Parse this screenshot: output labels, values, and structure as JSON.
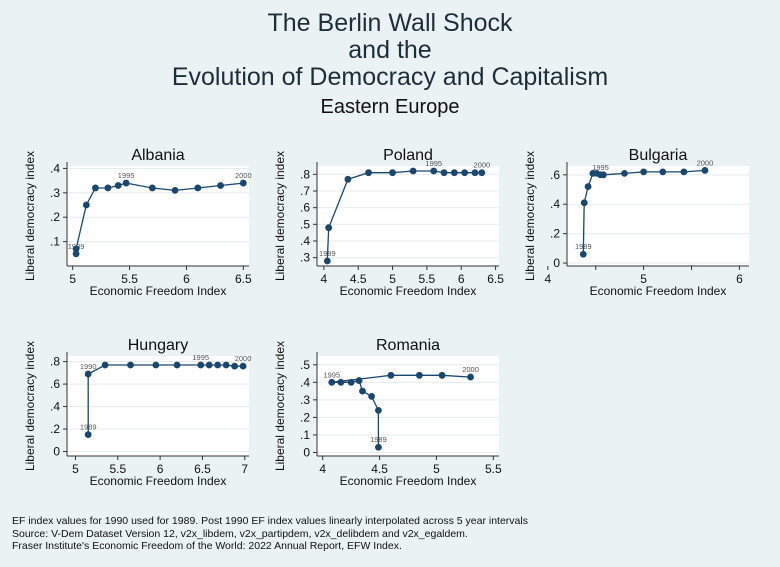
{
  "title_lines": [
    "The Berlin Wall Shock",
    "and the",
    "Evolution of Democracy and Capitalism"
  ],
  "subtitle": "Eastern Europe",
  "chart_data": [
    {
      "type": "line",
      "title": "Albania",
      "xlabel": "Economic Freedom Index",
      "ylabel": "Liberal democracy index",
      "xlim": [
        4.95,
        6.55
      ],
      "ylim": [
        0.0,
        0.41
      ],
      "xticks": [
        "5",
        "5.5",
        "6",
        "6.5"
      ],
      "xtick_values": [
        5,
        5.5,
        6,
        6.5
      ],
      "yticks": [
        ".1",
        ".2",
        ".3",
        ".4"
      ],
      "ytick_values": [
        0.1,
        0.2,
        0.3,
        0.4
      ],
      "points": [
        {
          "x": 5.03,
          "y": 0.05,
          "label": "1989"
        },
        {
          "x": 5.03,
          "y": 0.07
        },
        {
          "x": 5.12,
          "y": 0.25
        },
        {
          "x": 5.2,
          "y": 0.32
        },
        {
          "x": 5.31,
          "y": 0.32
        },
        {
          "x": 5.4,
          "y": 0.33
        },
        {
          "x": 5.47,
          "y": 0.34,
          "label": "1995"
        },
        {
          "x": 5.7,
          "y": 0.32
        },
        {
          "x": 5.9,
          "y": 0.31
        },
        {
          "x": 6.1,
          "y": 0.32
        },
        {
          "x": 6.3,
          "y": 0.33
        },
        {
          "x": 6.5,
          "y": 0.34,
          "label": "2000"
        }
      ]
    },
    {
      "type": "line",
      "title": "Poland",
      "xlabel": "Economic Freedom Index",
      "ylabel": "Liberal democracy index",
      "xlim": [
        3.9,
        6.55
      ],
      "ylim": [
        0.25,
        0.85
      ],
      "xticks": [
        "4",
        "4.5",
        "5",
        "5.5",
        "6",
        "6.5"
      ],
      "xtick_values": [
        4,
        4.5,
        5,
        5.5,
        6,
        6.5
      ],
      "yticks": [
        ".3",
        ".4",
        ".5",
        ".6",
        ".7",
        ".8"
      ],
      "ytick_values": [
        0.3,
        0.4,
        0.5,
        0.6,
        0.7,
        0.8
      ],
      "points": [
        {
          "x": 4.05,
          "y": 0.28,
          "label": "1989"
        },
        {
          "x": 4.07,
          "y": 0.48
        },
        {
          "x": 4.35,
          "y": 0.77
        },
        {
          "x": 4.65,
          "y": 0.81
        },
        {
          "x": 5.0,
          "y": 0.81
        },
        {
          "x": 5.3,
          "y": 0.82
        },
        {
          "x": 5.6,
          "y": 0.82,
          "label": "1995"
        },
        {
          "x": 5.75,
          "y": 0.81
        },
        {
          "x": 5.9,
          "y": 0.81
        },
        {
          "x": 6.05,
          "y": 0.81
        },
        {
          "x": 6.2,
          "y": 0.81
        },
        {
          "x": 6.3,
          "y": 0.81,
          "label": "2000"
        }
      ]
    },
    {
      "type": "line",
      "title": "Bulgaria",
      "xlabel": "Economic Freedom Index",
      "ylabel": "Liberal democracy index",
      "xlim": [
        4.2,
        6.1
      ],
      "ylim": [
        -0.02,
        0.66
      ],
      "xticks": [
        "4",
        "5",
        "6"
      ],
      "xtick_values": [
        4,
        5,
        6
      ],
      "yticks": [
        "0",
        ".2",
        ".4",
        ".6"
      ],
      "ytick_values": [
        0,
        0.2,
        0.4,
        0.6
      ],
      "minor_ticks": [
        4.5,
        5.5
      ],
      "points": [
        {
          "x": 4.37,
          "y": 0.06,
          "label": "1989"
        },
        {
          "x": 4.38,
          "y": 0.41
        },
        {
          "x": 4.42,
          "y": 0.52
        },
        {
          "x": 4.47,
          "y": 0.61
        },
        {
          "x": 4.51,
          "y": 0.61
        },
        {
          "x": 4.55,
          "y": 0.6,
          "label": "1995"
        },
        {
          "x": 4.58,
          "y": 0.6
        },
        {
          "x": 4.8,
          "y": 0.61
        },
        {
          "x": 5.0,
          "y": 0.62
        },
        {
          "x": 5.2,
          "y": 0.62
        },
        {
          "x": 5.42,
          "y": 0.62
        },
        {
          "x": 5.64,
          "y": 0.63,
          "label": "2000"
        }
      ]
    },
    {
      "type": "line",
      "title": "Hungary",
      "xlabel": "Economic Freedom Index",
      "ylabel": "Liberal democracy index",
      "xlim": [
        4.9,
        7.05
      ],
      "ylim": [
        -0.04,
        0.85
      ],
      "xticks": [
        "5",
        "5.5",
        "6",
        "6.5",
        "7"
      ],
      "xtick_values": [
        5,
        5.5,
        6,
        6.5,
        7
      ],
      "yticks": [
        "0",
        ".2",
        ".4",
        ".6",
        ".8"
      ],
      "ytick_values": [
        0,
        0.2,
        0.4,
        0.6,
        0.8
      ],
      "points": [
        {
          "x": 5.15,
          "y": 0.15,
          "label": "1989"
        },
        {
          "x": 5.15,
          "y": 0.69,
          "label": "1990"
        },
        {
          "x": 5.35,
          "y": 0.77
        },
        {
          "x": 5.65,
          "y": 0.77
        },
        {
          "x": 5.95,
          "y": 0.77
        },
        {
          "x": 6.2,
          "y": 0.77
        },
        {
          "x": 6.48,
          "y": 0.77,
          "label": "1995"
        },
        {
          "x": 6.58,
          "y": 0.77
        },
        {
          "x": 6.68,
          "y": 0.77
        },
        {
          "x": 6.78,
          "y": 0.77
        },
        {
          "x": 6.88,
          "y": 0.76
        },
        {
          "x": 6.98,
          "y": 0.76,
          "label": "2000"
        }
      ]
    },
    {
      "type": "line",
      "title": "Romania",
      "xlabel": "Economic Freedom Index",
      "ylabel": "Liberal democracy index",
      "xlim": [
        3.95,
        5.55
      ],
      "ylim": [
        -0.02,
        0.55
      ],
      "xticks": [
        "4",
        "4.5",
        "5",
        "5.5"
      ],
      "xtick_values": [
        4,
        4.5,
        5,
        5.5
      ],
      "yticks": [
        "0",
        ".1",
        ".2",
        ".3",
        ".4",
        ".5"
      ],
      "ytick_values": [
        0,
        0.1,
        0.2,
        0.3,
        0.4,
        0.5
      ],
      "points": [
        {
          "x": 4.49,
          "y": 0.03,
          "label": "1989"
        },
        {
          "x": 4.49,
          "y": 0.24
        },
        {
          "x": 4.43,
          "y": 0.32
        },
        {
          "x": 4.35,
          "y": 0.35
        },
        {
          "x": 4.32,
          "y": 0.41
        },
        {
          "x": 4.25,
          "y": 0.4
        },
        {
          "x": 4.16,
          "y": 0.4
        },
        {
          "x": 4.08,
          "y": 0.4,
          "label": "1995"
        },
        {
          "x": 4.6,
          "y": 0.44
        },
        {
          "x": 4.85,
          "y": 0.44
        },
        {
          "x": 5.05,
          "y": 0.44
        },
        {
          "x": 5.3,
          "y": 0.43,
          "label": "2000"
        }
      ]
    }
  ],
  "notes": [
    "EF index values for 1990 used for 1989. Post 1990 EF index values linearly interpolated across 5 year intervals",
    "Source: V-Dem Dataset Version 12, v2x_libdem, v2x_partipdem, v2x_delibdem and v2x_egaldem.",
    "Fraser Institute's Economic Freedom of the World: 2022 Annual Report, EFW Index."
  ],
  "colors": {
    "background": "#eaf2f3",
    "plot_area": "#ffffff",
    "gridline": "#e5ecef",
    "series": "#1a476f",
    "text": "#111111"
  }
}
